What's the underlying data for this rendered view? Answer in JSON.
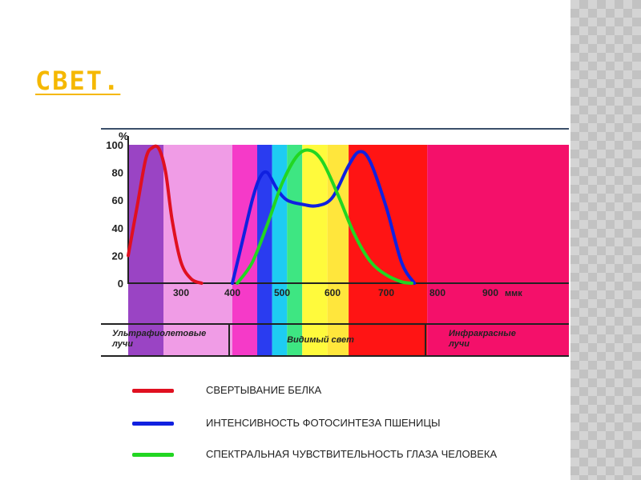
{
  "slide": {
    "title": "СВЕТ."
  },
  "colors": {
    "title": "#f5b800",
    "axis": "#222222",
    "red_curve": "#e01020",
    "blue_curve": "#1020e0",
    "green_curve": "#22d622"
  },
  "chart_data": {
    "type": "line",
    "y_unit_label": "%",
    "x_unit_label": "ммк",
    "ylim": [
      0,
      100
    ],
    "y_ticks": [
      "0",
      "20",
      "40",
      "60",
      "80",
      "100"
    ],
    "x_ticks": [
      {
        "value": 300,
        "label": "300"
      },
      {
        "value": 400,
        "label": "400"
      },
      {
        "value": 500,
        "label": "500"
      },
      {
        "value": 600,
        "label": "600"
      },
      {
        "value": 700,
        "label": "700"
      },
      {
        "value": 800,
        "label": "800"
      },
      {
        "value": 900,
        "label": "900"
      }
    ],
    "regions": [
      {
        "name": "Ультрафиолетовые лучи",
        "lines": [
          "Ультрафиолетовые",
          "лучи"
        ]
      },
      {
        "name": "Видимый свет",
        "lines": [
          "Видимый свет"
        ]
      },
      {
        "name": "Инфракрасные лучи",
        "lines": [
          "Инфракрасные",
          "лучи"
        ]
      }
    ],
    "spectrum_bands": [
      {
        "from": 180,
        "to": 260,
        "color": "#9a44c4"
      },
      {
        "from": 260,
        "to": 400,
        "color": "#f09ce6"
      },
      {
        "from": 400,
        "to": 450,
        "color": "#f53ac8"
      },
      {
        "from": 450,
        "to": 480,
        "color": "#2a3cf0"
      },
      {
        "from": 480,
        "to": 510,
        "color": "#1eccf2"
      },
      {
        "from": 510,
        "to": 540,
        "color": "#3ee682"
      },
      {
        "from": 540,
        "to": 590,
        "color": "#fffa3c"
      },
      {
        "from": 590,
        "to": 630,
        "color": "#ffe63c"
      },
      {
        "from": 630,
        "to": 780,
        "color": "#ff1414"
      },
      {
        "from": 780,
        "to": 1000,
        "color": "#f4106a"
      }
    ],
    "series": [
      {
        "name": "СВЕРТЫВАНИЕ БЕЛКА",
        "color": "#e01020",
        "x": [
          180,
          200,
          220,
          235,
          250,
          265,
          280,
          300,
          320,
          340
        ],
        "y": [
          20,
          55,
          90,
          98,
          97,
          80,
          45,
          15,
          3,
          0
        ]
      },
      {
        "name": "ИНТЕНСИВНОСТЬ ФОТОСИНТЕЗА ПШЕНИЦЫ",
        "color": "#1020e0",
        "x": [
          400,
          420,
          440,
          455,
          470,
          490,
          510,
          540,
          570,
          600,
          630,
          650,
          670,
          700,
          730,
          755
        ],
        "y": [
          0,
          30,
          60,
          76,
          80,
          68,
          60,
          57,
          56,
          62,
          85,
          95,
          88,
          55,
          15,
          0
        ]
      },
      {
        "name": "СПЕКТРАЛЬНАЯ ЧУВСТВИТЕЛЬНОСТЬ ГЛАЗА ЧЕЛОВЕКА",
        "color": "#22d622",
        "x": [
          410,
          440,
          470,
          500,
          530,
          555,
          580,
          610,
          640,
          670,
          700,
          730,
          750
        ],
        "y": [
          0,
          15,
          42,
          72,
          92,
          96,
          88,
          64,
          36,
          16,
          6,
          1,
          0
        ]
      }
    ]
  },
  "legend": [
    {
      "label": "СВЕРТЫВАНИЕ БЕЛКА",
      "color": "#e01020"
    },
    {
      "label": "ИНТЕНСИВНОСТЬ ФОТОСИНТЕЗА ПШЕНИЦЫ",
      "color": "#1020e0"
    },
    {
      "label": "СПЕКТРАЛЬНАЯ ЧУВСТВИТЕЛЬНОСТЬ ГЛАЗА ЧЕЛОВЕКА",
      "color": "#22d622"
    }
  ]
}
